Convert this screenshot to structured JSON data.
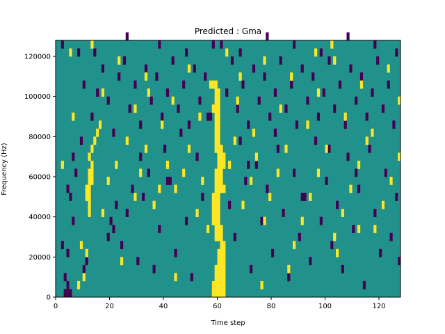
{
  "chart_data": {
    "type": "heatmap",
    "title": "Predicted : Gma",
    "xlabel": "Time step",
    "ylabel": "Frequency (Hz)",
    "xlim": [
      0,
      128
    ],
    "ylim": [
      0,
      128000
    ],
    "xticks": [
      0,
      20,
      40,
      60,
      80,
      100,
      120
    ],
    "yticks": [
      0,
      20000,
      40000,
      60000,
      80000,
      100000,
      120000
    ],
    "xtick_labels": [
      "0",
      "20",
      "40",
      "60",
      "80",
      "100",
      "120"
    ],
    "ytick_labels": [
      "0",
      "20000",
      "40000",
      "60000",
      "80000",
      "100000",
      "120000"
    ],
    "grid": false,
    "legend": false,
    "colormap": {
      "low": "#440154",
      "mid": "#21918c",
      "high": "#fde725"
    },
    "background_value": 0.5,
    "cell_height_hz": 4000,
    "low_cells": [
      [
        3,
        0
      ],
      [
        4,
        0
      ],
      [
        5,
        0
      ],
      [
        3,
        2
      ],
      [
        4,
        1
      ],
      [
        2,
        6
      ],
      [
        4,
        5
      ],
      [
        6,
        9
      ],
      [
        10,
        3
      ],
      [
        11,
        4
      ],
      [
        19,
        7
      ],
      [
        20,
        9
      ],
      [
        21,
        8
      ],
      [
        22,
        11
      ],
      [
        24,
        6
      ],
      [
        26,
        10
      ],
      [
        28,
        13
      ],
      [
        30,
        4
      ],
      [
        32,
        12
      ],
      [
        34,
        15
      ],
      [
        36,
        3
      ],
      [
        38,
        8
      ],
      [
        40,
        18
      ],
      [
        42,
        14
      ],
      [
        44,
        5
      ],
      [
        46,
        20
      ],
      [
        48,
        9
      ],
      [
        50,
        2
      ],
      [
        52,
        17
      ],
      [
        54,
        12
      ],
      [
        56,
        22
      ],
      [
        58,
        1
      ],
      [
        62,
        4
      ],
      [
        64,
        11
      ],
      [
        66,
        7
      ],
      [
        68,
        19
      ],
      [
        70,
        14
      ],
      [
        72,
        3
      ],
      [
        74,
        16
      ],
      [
        76,
        9
      ],
      [
        78,
        13
      ],
      [
        80,
        5
      ],
      [
        82,
        18
      ],
      [
        84,
        10
      ],
      [
        86,
        2
      ],
      [
        88,
        15
      ],
      [
        90,
        7
      ],
      [
        92,
        12
      ],
      [
        94,
        4
      ],
      [
        96,
        19
      ],
      [
        98,
        9
      ],
      [
        100,
        14
      ],
      [
        102,
        6
      ],
      [
        104,
        11
      ],
      [
        106,
        3
      ],
      [
        108,
        17
      ],
      [
        110,
        8
      ],
      [
        112,
        13
      ],
      [
        114,
        1
      ],
      [
        116,
        18
      ],
      [
        118,
        10
      ],
      [
        120,
        5
      ],
      [
        122,
        15
      ],
      [
        124,
        7
      ],
      [
        126,
        12
      ],
      [
        127,
        4
      ],
      [
        5,
        12
      ],
      [
        7,
        15
      ],
      [
        9,
        19
      ],
      [
        13,
        22
      ],
      [
        15,
        25
      ],
      [
        17,
        28
      ],
      [
        19,
        24
      ],
      [
        23,
        27
      ],
      [
        25,
        29
      ],
      [
        27,
        23
      ],
      [
        29,
        26
      ],
      [
        31,
        21
      ],
      [
        33,
        28
      ],
      [
        35,
        24
      ],
      [
        37,
        27
      ],
      [
        39,
        22
      ],
      [
        41,
        25
      ],
      [
        43,
        29
      ],
      [
        45,
        23
      ],
      [
        47,
        26
      ],
      [
        49,
        21
      ],
      [
        51,
        28
      ],
      [
        53,
        24
      ],
      [
        55,
        27
      ],
      [
        57,
        22
      ],
      [
        63,
        25
      ],
      [
        65,
        29
      ],
      [
        67,
        23
      ],
      [
        69,
        26
      ],
      [
        71,
        21
      ],
      [
        73,
        28
      ],
      [
        75,
        24
      ],
      [
        77,
        27
      ],
      [
        79,
        22
      ],
      [
        81,
        25
      ],
      [
        83,
        29
      ],
      [
        85,
        23
      ],
      [
        87,
        26
      ],
      [
        89,
        21
      ],
      [
        91,
        28
      ],
      [
        93,
        24
      ],
      [
        95,
        27
      ],
      [
        97,
        22
      ],
      [
        99,
        25
      ],
      [
        101,
        29
      ],
      [
        103,
        23
      ],
      [
        105,
        26
      ],
      [
        107,
        21
      ],
      [
        109,
        28
      ],
      [
        111,
        24
      ],
      [
        113,
        27
      ],
      [
        115,
        22
      ],
      [
        117,
        25
      ],
      [
        119,
        29
      ],
      [
        121,
        23
      ],
      [
        123,
        26
      ],
      [
        125,
        21
      ],
      [
        4,
        13
      ],
      [
        6,
        17
      ],
      [
        10,
        26
      ],
      [
        21,
        20
      ],
      [
        31,
        17
      ],
      [
        41,
        14
      ],
      [
        61,
        31
      ],
      [
        71,
        16
      ],
      [
        81,
        20
      ],
      [
        91,
        12
      ],
      [
        101,
        18
      ],
      [
        111,
        15
      ],
      [
        121,
        11
      ],
      [
        2,
        31
      ],
      [
        8,
        30
      ],
      [
        14,
        30
      ],
      [
        26,
        32
      ],
      [
        38,
        31
      ],
      [
        48,
        30
      ],
      [
        58,
        31
      ],
      [
        68,
        30
      ],
      [
        78,
        32
      ],
      [
        88,
        31
      ],
      [
        98,
        30
      ],
      [
        108,
        32
      ],
      [
        118,
        31
      ],
      [
        126,
        30
      ]
    ],
    "high_cells": [
      [
        58,
        0
      ],
      [
        59,
        0
      ],
      [
        60,
        0
      ],
      [
        61,
        0
      ],
      [
        62,
        0
      ],
      [
        58,
        1
      ],
      [
        59,
        1
      ],
      [
        60,
        1
      ],
      [
        61,
        1
      ],
      [
        62,
        1
      ],
      [
        59,
        2
      ],
      [
        60,
        2
      ],
      [
        61,
        2
      ],
      [
        62,
        2
      ],
      [
        59,
        3
      ],
      [
        60,
        3
      ],
      [
        61,
        3
      ],
      [
        62,
        3
      ],
      [
        60,
        4
      ],
      [
        61,
        4
      ],
      [
        62,
        4
      ],
      [
        60,
        5
      ],
      [
        61,
        5
      ],
      [
        62,
        5
      ],
      [
        61,
        6
      ],
      [
        62,
        6
      ],
      [
        59,
        7
      ],
      [
        60,
        7
      ],
      [
        61,
        7
      ],
      [
        59,
        8
      ],
      [
        60,
        8
      ],
      [
        61,
        8
      ],
      [
        58,
        9
      ],
      [
        59,
        9
      ],
      [
        60,
        9
      ],
      [
        58,
        10
      ],
      [
        59,
        10
      ],
      [
        60,
        10
      ],
      [
        58,
        11
      ],
      [
        59,
        11
      ],
      [
        60,
        11
      ],
      [
        58,
        12
      ],
      [
        59,
        12
      ],
      [
        60,
        12
      ],
      [
        59,
        13
      ],
      [
        60,
        13
      ],
      [
        61,
        13
      ],
      [
        59,
        14
      ],
      [
        60,
        14
      ],
      [
        61,
        14
      ],
      [
        59,
        15
      ],
      [
        60,
        15
      ],
      [
        61,
        15
      ],
      [
        60,
        16
      ],
      [
        61,
        16
      ],
      [
        62,
        16
      ],
      [
        60,
        17
      ],
      [
        61,
        17
      ],
      [
        62,
        17
      ],
      [
        59,
        18
      ],
      [
        60,
        18
      ],
      [
        61,
        18
      ],
      [
        59,
        19
      ],
      [
        60,
        19
      ],
      [
        59,
        20
      ],
      [
        60,
        20
      ],
      [
        59,
        21
      ],
      [
        60,
        21
      ],
      [
        59,
        22
      ],
      [
        60,
        22
      ],
      [
        58,
        23
      ],
      [
        59,
        23
      ],
      [
        60,
        23
      ],
      [
        59,
        24
      ],
      [
        60,
        24
      ],
      [
        59,
        25
      ],
      [
        60,
        25
      ],
      [
        58,
        26
      ],
      [
        59,
        26
      ],
      [
        12,
        10
      ],
      [
        12,
        11
      ],
      [
        11,
        12
      ],
      [
        12,
        12
      ],
      [
        11,
        13
      ],
      [
        12,
        13
      ],
      [
        12,
        14
      ],
      [
        13,
        14
      ],
      [
        12,
        15
      ],
      [
        13,
        15
      ],
      [
        13,
        16
      ],
      [
        12,
        17
      ],
      [
        13,
        18
      ],
      [
        14,
        19
      ],
      [
        15,
        20
      ],
      [
        16,
        21
      ],
      [
        9,
        6
      ],
      [
        10,
        2
      ],
      [
        8,
        1
      ],
      [
        11,
        5
      ],
      [
        17,
        10
      ],
      [
        19,
        14
      ],
      [
        22,
        16
      ],
      [
        26,
        19
      ],
      [
        29,
        12
      ],
      [
        31,
        15
      ],
      [
        33,
        18
      ],
      [
        36,
        11
      ],
      [
        38,
        13
      ],
      [
        41,
        16
      ],
      [
        44,
        13
      ],
      [
        47,
        15
      ],
      [
        49,
        18
      ],
      [
        52,
        10
      ],
      [
        54,
        14
      ],
      [
        56,
        8
      ],
      [
        62,
        13
      ],
      [
        64,
        16
      ],
      [
        66,
        19
      ],
      [
        69,
        11
      ],
      [
        72,
        14
      ],
      [
        74,
        17
      ],
      [
        77,
        9
      ],
      [
        79,
        12
      ],
      [
        82,
        15
      ],
      [
        85,
        18
      ],
      [
        88,
        6
      ],
      [
        91,
        9
      ],
      [
        94,
        12
      ],
      [
        97,
        15
      ],
      [
        100,
        18
      ],
      [
        103,
        7
      ],
      [
        106,
        10
      ],
      [
        109,
        13
      ],
      [
        112,
        16
      ],
      [
        115,
        19
      ],
      [
        118,
        8
      ],
      [
        121,
        11
      ],
      [
        124,
        14
      ],
      [
        127,
        17
      ],
      [
        5,
        30
      ],
      [
        13,
        31
      ],
      [
        17,
        25
      ],
      [
        23,
        29
      ],
      [
        29,
        23
      ],
      [
        33,
        27
      ],
      [
        39,
        21
      ],
      [
        43,
        24
      ],
      [
        49,
        28
      ],
      [
        53,
        22
      ],
      [
        57,
        26
      ],
      [
        63,
        30
      ],
      [
        67,
        24
      ],
      [
        73,
        20
      ],
      [
        77,
        29
      ],
      [
        83,
        23
      ],
      [
        87,
        27
      ],
      [
        93,
        21
      ],
      [
        97,
        25
      ],
      [
        103,
        29
      ],
      [
        107,
        22
      ],
      [
        113,
        26
      ],
      [
        117,
        20
      ],
      [
        123,
        28
      ],
      [
        127,
        24
      ],
      [
        2,
        16
      ],
      [
        24,
        4
      ],
      [
        44,
        2
      ],
      [
        76,
        1
      ],
      [
        86,
        3
      ],
      [
        104,
        5
      ],
      [
        112,
        8
      ],
      [
        6,
        22
      ],
      [
        34,
        25
      ],
      [
        96,
        30
      ],
      [
        102,
        31
      ],
      [
        68,
        27
      ]
    ]
  }
}
